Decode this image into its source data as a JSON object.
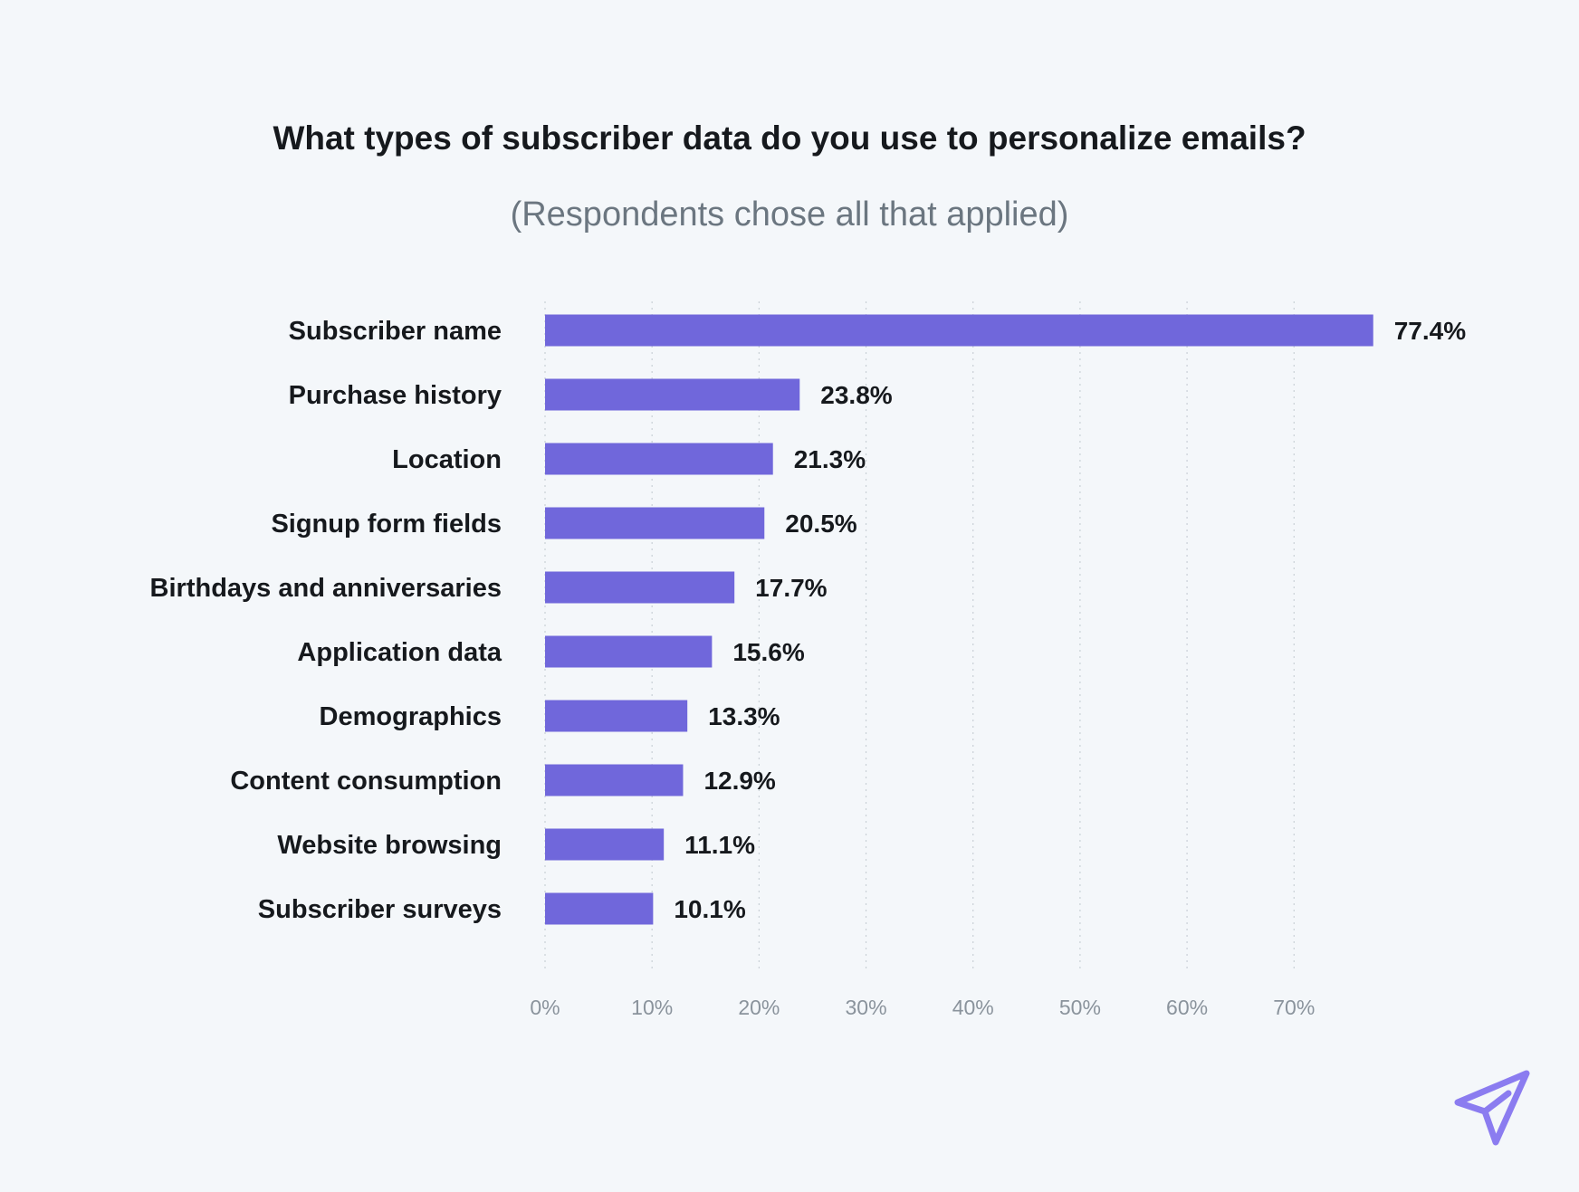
{
  "chart_data": {
    "type": "bar",
    "orientation": "horizontal",
    "title": "What types of subscriber data do you use to personalize emails?",
    "subtitle": "(Respondents chose all that applied)",
    "categories": [
      "Subscriber name",
      "Purchase history",
      "Location",
      "Signup form fields",
      "Birthdays and anniversaries",
      "Application data",
      "Demographics",
      "Content consumption",
      "Website browsing",
      "Subscriber surveys"
    ],
    "values": [
      77.4,
      23.8,
      21.3,
      20.5,
      17.7,
      15.6,
      13.3,
      12.9,
      11.1,
      10.1
    ],
    "value_labels": [
      "77.4%",
      "23.8%",
      "21.3%",
      "20.5%",
      "17.7%",
      "15.6%",
      "13.3%",
      "12.9%",
      "11.1%",
      "10.1%"
    ],
    "xticks": [
      0,
      10,
      20,
      30,
      40,
      50,
      60,
      70
    ],
    "xtick_labels": [
      "0%",
      "10%",
      "20%",
      "30%",
      "40%",
      "50%",
      "60%",
      "70%"
    ],
    "xlim": [
      0,
      77.4
    ],
    "xlabel": "",
    "ylabel": "",
    "grid": true,
    "bar_color": "#7067db"
  },
  "colors": {
    "background": "#f4f7fa",
    "bar": "#7067db",
    "logo": "#8b7cf0",
    "text": "#16191d",
    "muted": "#6b7680"
  },
  "logo": {
    "icon": "paper-plane-icon"
  }
}
